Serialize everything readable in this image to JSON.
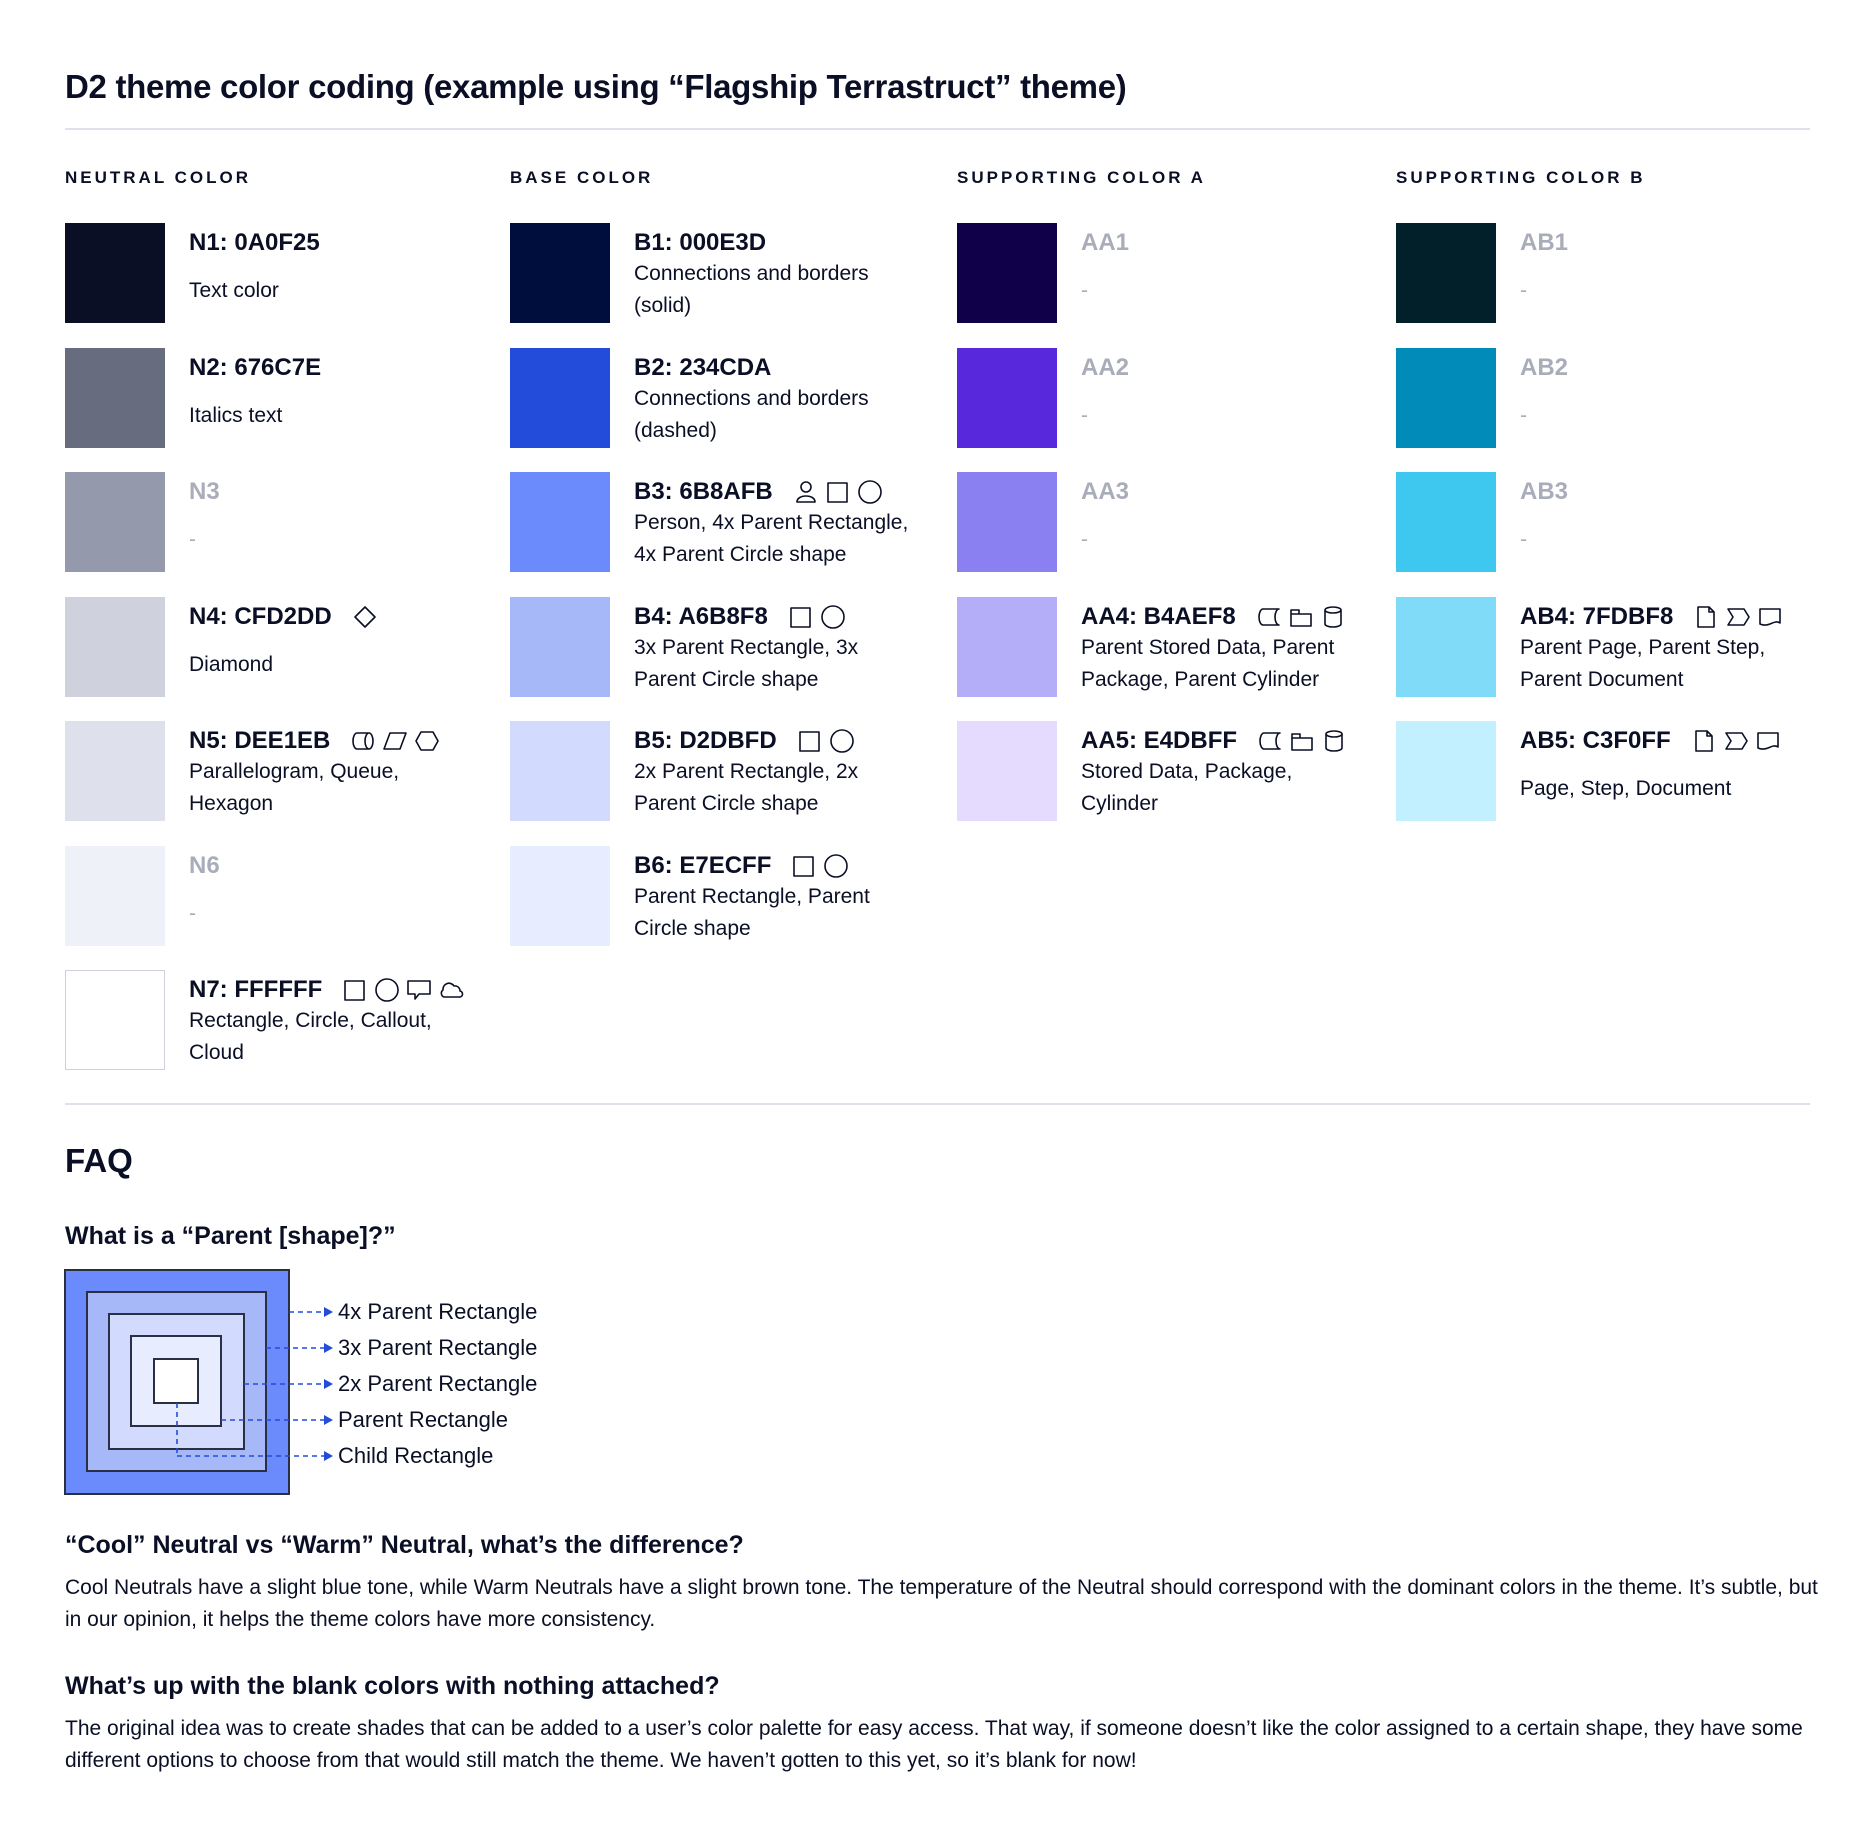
{
  "title": "D2 theme color coding (example using “Flagship Terrastruct” theme)",
  "columns": [
    {
      "header": "NEUTRAL COLOR",
      "items": [
        {
          "label": "N1: 0A0F25",
          "color": "#0A0F25",
          "desc": [
            "Text color"
          ],
          "muted": false,
          "icons": []
        },
        {
          "label": "N2: 676C7E",
          "color": "#676C7E",
          "desc": [
            "Italics text"
          ],
          "muted": false,
          "icons": []
        },
        {
          "label": "N3",
          "color": "#9499AB",
          "desc": [
            "-"
          ],
          "muted": true,
          "icons": []
        },
        {
          "label": "N4: CFD2DD",
          "color": "#CFD2DD",
          "desc": [
            "Diamond"
          ],
          "muted": false,
          "icons": [
            "diamond"
          ]
        },
        {
          "label": "N5: DEE1EB",
          "color": "#DEE1EB",
          "desc": [
            "Parallelogram, Queue,",
            "Hexagon"
          ],
          "muted": false,
          "icons": [
            "queue",
            "parallelogram",
            "hexagon"
          ]
        },
        {
          "label": "N6",
          "color": "#EEF1F8",
          "desc": [
            "-"
          ],
          "muted": true,
          "icons": []
        },
        {
          "label": "N7: FFFFFF",
          "color": "#FFFFFF",
          "desc": [
            "Rectangle, Circle, Callout,",
            "Cloud"
          ],
          "muted": false,
          "icons": [
            "rectangle",
            "circle",
            "callout",
            "cloud"
          ]
        }
      ]
    },
    {
      "header": "BASE COLOR",
      "items": [
        {
          "label": "B1: 000E3D",
          "color": "#000E3D",
          "desc": [
            "Connections and borders",
            "(solid)"
          ],
          "muted": false,
          "icons": []
        },
        {
          "label": "B2: 234CDA",
          "color": "#234CDA",
          "desc": [
            "Connections and borders",
            "(dashed)"
          ],
          "muted": false,
          "icons": []
        },
        {
          "label": "B3: 6B8AFB",
          "color": "#6B8AFB",
          "desc": [
            "Person, 4x Parent Rectangle,",
            "4x Parent Circle shape"
          ],
          "muted": false,
          "icons": [
            "person",
            "rectangle",
            "circle"
          ]
        },
        {
          "label": "B4: A6B8F8",
          "color": "#A6B8F8",
          "desc": [
            "3x Parent Rectangle, 3x",
            "Parent Circle shape"
          ],
          "muted": false,
          "icons": [
            "rectangle",
            "circle"
          ]
        },
        {
          "label": "B5: D2DBFD",
          "color": "#D2DBFD",
          "desc": [
            "2x Parent Rectangle, 2x",
            "Parent Circle shape"
          ],
          "muted": false,
          "icons": [
            "rectangle",
            "circle"
          ]
        },
        {
          "label": "B6: E7ECFF",
          "color": "#E7ECFF",
          "desc": [
            "Parent Rectangle, Parent",
            "Circle shape"
          ],
          "muted": false,
          "icons": [
            "rectangle",
            "circle"
          ]
        }
      ]
    },
    {
      "header": "SUPPORTING COLOR A",
      "items": [
        {
          "label": "AA1",
          "color": "#10004A",
          "desc": [
            "-"
          ],
          "muted": true,
          "icons": []
        },
        {
          "label": "AA2",
          "color": "#5829DC",
          "desc": [
            "-"
          ],
          "muted": true,
          "icons": []
        },
        {
          "label": "AA3",
          "color": "#8B80F1",
          "desc": [
            "-"
          ],
          "muted": true,
          "icons": []
        },
        {
          "label": "AA4: B4AEF8",
          "color": "#B4AEF8",
          "desc": [
            "Parent Stored Data, Parent",
            "Package,  Parent Cylinder"
          ],
          "muted": false,
          "icons": [
            "stored-data",
            "package",
            "cylinder"
          ]
        },
        {
          "label": "AA5: E4DBFF",
          "color": "#E4DBFF",
          "desc": [
            "Stored Data, Package,",
            "Cylinder"
          ],
          "muted": false,
          "icons": [
            "stored-data",
            "package",
            "cylinder"
          ]
        }
      ]
    },
    {
      "header": "SUPPORTING COLOR B",
      "items": [
        {
          "label": "AB1",
          "color": "#012029",
          "desc": [
            "-"
          ],
          "muted": true,
          "icons": []
        },
        {
          "label": "AB2",
          "color": "#008BB8",
          "desc": [
            "-"
          ],
          "muted": true,
          "icons": []
        },
        {
          "label": "AB3",
          "color": "#3EC8F0",
          "desc": [
            "-"
          ],
          "muted": true,
          "icons": []
        },
        {
          "label": "AB4: 7FDBF8",
          "color": "#7FDBF8",
          "desc": [
            "Parent Page, Parent Step,",
            "Parent Document"
          ],
          "muted": false,
          "icons": [
            "page",
            "step",
            "document"
          ]
        },
        {
          "label": "AB5: C3F0FF",
          "color": "#C3F0FF",
          "desc": [
            "Page, Step, Document"
          ],
          "muted": false,
          "icons": [
            "page",
            "step",
            "document"
          ]
        }
      ]
    }
  ],
  "faq": {
    "title": "FAQ",
    "q1": "What is a “Parent [shape]?”",
    "diagram_labels": [
      "4x Parent Rectangle",
      "3x Parent Rectangle",
      "2x Parent Rectangle",
      "Parent Rectangle",
      "Child Rectangle"
    ],
    "diagram_colors": [
      "#6B8AFB",
      "#A6B8F8",
      "#D2DBFD",
      "#E7ECFF",
      "#FFFFFF"
    ],
    "arrow_color": "#234CDA",
    "q2": "“Cool” Neutral vs “Warm” Neutral, what’s the difference?",
    "a2": "Cool Neutrals have a slight blue tone, while Warm Neutrals have a slight brown tone. The temperature of the Neutral should correspond with the dominant colors in the theme. It’s subtle, but in our opinion, it helps the theme colors have more consistency.",
    "q3": "What’s up with the blank colors with nothing attached?",
    "a3": "The original idea was to create shades that can be added to a user’s color palette for easy access. That way, if someone doesn’t like the color assigned to a certain shape, they have some different options to choose from that would still match the theme. We haven’t gotten to this yet, so it’s blank for now!"
  }
}
